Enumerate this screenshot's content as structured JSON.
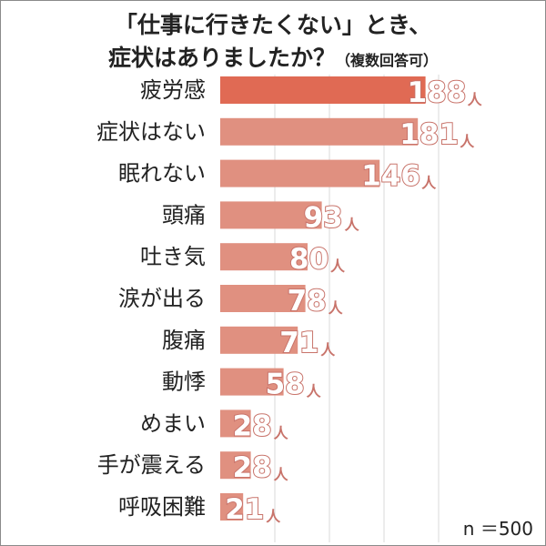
{
  "title_line1": "「仕事に行きたくない」とき、",
  "title_line2": "症状はありましたか？",
  "title_note": "（複数回答可）",
  "sample_size": "n ＝500",
  "unit": "人",
  "colors": {
    "bar": "#e09080",
    "bar_highlight": "#e06a54",
    "label_outline": "#c8736a",
    "grid": "#d9d9d9"
  },
  "chart_data": {
    "type": "bar",
    "orientation": "horizontal",
    "title": "「仕事に行きたくない」とき、症状はありましたか？（複数回答可）",
    "categories": [
      "疲労感",
      "症状はない",
      "眠れない",
      "頭痛",
      "吐き気",
      "涙が出る",
      "腹痛",
      "動悸",
      "めまい",
      "手が震える",
      "呼吸困難"
    ],
    "values": [
      188,
      181,
      146,
      93,
      80,
      78,
      71,
      58,
      28,
      28,
      21
    ],
    "value_labels": [
      "188",
      "181",
      "146",
      "93",
      "80",
      "78",
      "71",
      "58",
      "28",
      "28",
      "21"
    ],
    "unit": "人",
    "xlim": [
      0,
      200
    ],
    "gridlines": [
      50,
      100,
      150,
      200
    ],
    "highlight_index": 0,
    "note": "n ＝500"
  }
}
